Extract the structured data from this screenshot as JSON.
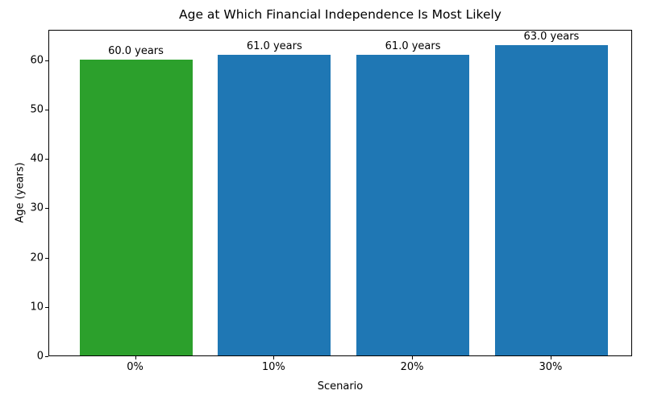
{
  "chart_data": {
    "type": "bar",
    "title": "Age at Which Financial Independence Is Most Likely",
    "xlabel": "Scenario",
    "ylabel": "Age (years)",
    "categories": [
      "0%",
      "10%",
      "20%",
      "30%"
    ],
    "values": [
      60.0,
      61.0,
      61.0,
      63.0
    ],
    "bar_labels": [
      "60.0 years",
      "61.0 years",
      "61.0 years",
      "63.0 years"
    ],
    "bar_colors": [
      "#2ca02c",
      "#1f77b4",
      "#1f77b4",
      "#1f77b4"
    ],
    "ylim": [
      0,
      66.2
    ],
    "yticks": [
      0,
      10,
      20,
      30,
      40,
      50,
      60
    ],
    "grid": false,
    "legend": null,
    "background_color": "#ffffff",
    "spine_color": "#000000"
  }
}
